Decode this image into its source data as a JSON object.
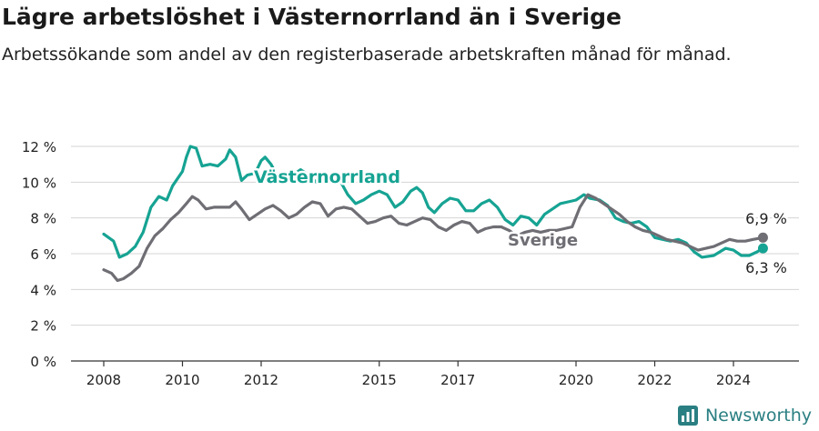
{
  "header": {
    "title": "Lägre arbetslöshet i Västernorrland än i Sverige",
    "subtitle": "Arbetssökande som andel av den registerbaserade arbetskraften månad för månad."
  },
  "brand": {
    "name": "Newsworthy",
    "icon": "newsworthy-logo-icon"
  },
  "colors": {
    "vasternorrland": "#16a393",
    "sverige": "#6e6e74",
    "grid": "#d4d4d4",
    "axis": "#333333"
  },
  "chart_data": {
    "type": "line",
    "title": "Lägre arbetslöshet i Västernorrland än i Sverige",
    "subtitle": "Arbetssökande som andel av den registerbaserade arbetskraften månad för månad.",
    "xlabel": "",
    "ylabel": "",
    "xlim": [
      2008,
      2025
    ],
    "ylim": [
      0,
      12
    ],
    "y_ticks": [
      0,
      2,
      4,
      6,
      8,
      10,
      12
    ],
    "y_tick_labels": [
      "0 %",
      "2 %",
      "4 %",
      "6 %",
      "8 %",
      "10 %",
      "12 %"
    ],
    "x_ticks": [
      2008,
      2010,
      2012,
      2015,
      2017,
      2020,
      2022,
      2024
    ],
    "x_tick_labels": [
      "2008",
      "2010",
      "2012",
      "2015",
      "2017",
      "2020",
      "2022",
      "2024"
    ],
    "grid": "horizontal",
    "legend": "direct labels on lines",
    "series": [
      {
        "name": "Västernorrland",
        "color": "#16a393",
        "end_label": "6,3 %",
        "points": [
          [
            2008.0,
            7.1
          ],
          [
            2008.25,
            6.7
          ],
          [
            2008.4,
            5.8
          ],
          [
            2008.6,
            6.0
          ],
          [
            2008.8,
            6.4
          ],
          [
            2009.0,
            7.2
          ],
          [
            2009.2,
            8.6
          ],
          [
            2009.4,
            9.2
          ],
          [
            2009.6,
            9.0
          ],
          [
            2009.75,
            9.8
          ],
          [
            2010.0,
            10.6
          ],
          [
            2010.1,
            11.4
          ],
          [
            2010.2,
            12.0
          ],
          [
            2010.35,
            11.9
          ],
          [
            2010.5,
            10.9
          ],
          [
            2010.7,
            11.0
          ],
          [
            2010.9,
            10.9
          ],
          [
            2011.1,
            11.3
          ],
          [
            2011.2,
            11.8
          ],
          [
            2011.35,
            11.4
          ],
          [
            2011.5,
            10.1
          ],
          [
            2011.65,
            10.4
          ],
          [
            2011.85,
            10.5
          ],
          [
            2012.0,
            11.2
          ],
          [
            2012.1,
            11.4
          ],
          [
            2012.25,
            11.0
          ],
          [
            2012.4,
            10.4
          ],
          [
            2012.55,
            10.0
          ],
          [
            2012.75,
            10.3
          ],
          [
            2013.0,
            10.7
          ],
          [
            2013.2,
            10.4
          ],
          [
            2013.4,
            10.0
          ],
          [
            2013.6,
            10.3
          ],
          [
            2013.8,
            10.4
          ],
          [
            2014.0,
            10.1
          ],
          [
            2014.2,
            9.3
          ],
          [
            2014.4,
            8.8
          ],
          [
            2014.6,
            9.0
          ],
          [
            2014.8,
            9.3
          ],
          [
            2015.0,
            9.5
          ],
          [
            2015.2,
            9.3
          ],
          [
            2015.4,
            8.6
          ],
          [
            2015.6,
            8.9
          ],
          [
            2015.8,
            9.5
          ],
          [
            2015.95,
            9.7
          ],
          [
            2016.1,
            9.4
          ],
          [
            2016.25,
            8.6
          ],
          [
            2016.4,
            8.3
          ],
          [
            2016.6,
            8.8
          ],
          [
            2016.8,
            9.1
          ],
          [
            2017.0,
            9.0
          ],
          [
            2017.2,
            8.4
          ],
          [
            2017.4,
            8.4
          ],
          [
            2017.6,
            8.8
          ],
          [
            2017.8,
            9.0
          ],
          [
            2018.0,
            8.6
          ],
          [
            2018.2,
            7.9
          ],
          [
            2018.4,
            7.6
          ],
          [
            2018.6,
            8.1
          ],
          [
            2018.8,
            8.0
          ],
          [
            2019.0,
            7.6
          ],
          [
            2019.2,
            8.2
          ],
          [
            2019.4,
            8.5
          ],
          [
            2019.6,
            8.8
          ],
          [
            2019.8,
            8.9
          ],
          [
            2020.0,
            9.0
          ],
          [
            2020.2,
            9.3
          ],
          [
            2020.35,
            9.1
          ],
          [
            2020.6,
            9.0
          ],
          [
            2020.8,
            8.7
          ],
          [
            2021.0,
            8.0
          ],
          [
            2021.2,
            7.8
          ],
          [
            2021.4,
            7.7
          ],
          [
            2021.6,
            7.8
          ],
          [
            2021.8,
            7.5
          ],
          [
            2022.0,
            6.9
          ],
          [
            2022.2,
            6.8
          ],
          [
            2022.4,
            6.7
          ],
          [
            2022.6,
            6.8
          ],
          [
            2022.8,
            6.6
          ],
          [
            2023.0,
            6.1
          ],
          [
            2023.2,
            5.8
          ],
          [
            2023.5,
            5.9
          ],
          [
            2023.8,
            6.3
          ],
          [
            2024.0,
            6.2
          ],
          [
            2024.2,
            5.9
          ],
          [
            2024.4,
            5.9
          ],
          [
            2024.6,
            6.1
          ],
          [
            2024.75,
            6.3
          ]
        ]
      },
      {
        "name": "Sverige",
        "color": "#6e6e74",
        "end_label": "6,9 %",
        "points": [
          [
            2008.0,
            5.1
          ],
          [
            2008.2,
            4.9
          ],
          [
            2008.35,
            4.5
          ],
          [
            2008.5,
            4.6
          ],
          [
            2008.7,
            4.9
          ],
          [
            2008.9,
            5.3
          ],
          [
            2009.1,
            6.3
          ],
          [
            2009.3,
            7.0
          ],
          [
            2009.5,
            7.4
          ],
          [
            2009.7,
            7.9
          ],
          [
            2009.9,
            8.3
          ],
          [
            2010.1,
            8.8
          ],
          [
            2010.25,
            9.2
          ],
          [
            2010.4,
            9.0
          ],
          [
            2010.6,
            8.5
          ],
          [
            2010.8,
            8.6
          ],
          [
            2011.0,
            8.6
          ],
          [
            2011.2,
            8.6
          ],
          [
            2011.35,
            8.9
          ],
          [
            2011.5,
            8.5
          ],
          [
            2011.7,
            7.9
          ],
          [
            2011.9,
            8.2
          ],
          [
            2012.1,
            8.5
          ],
          [
            2012.3,
            8.7
          ],
          [
            2012.5,
            8.4
          ],
          [
            2012.7,
            8.0
          ],
          [
            2012.9,
            8.2
          ],
          [
            2013.1,
            8.6
          ],
          [
            2013.3,
            8.9
          ],
          [
            2013.5,
            8.8
          ],
          [
            2013.7,
            8.1
          ],
          [
            2013.9,
            8.5
          ],
          [
            2014.1,
            8.6
          ],
          [
            2014.3,
            8.5
          ],
          [
            2014.5,
            8.1
          ],
          [
            2014.7,
            7.7
          ],
          [
            2014.9,
            7.8
          ],
          [
            2015.1,
            8.0
          ],
          [
            2015.3,
            8.1
          ],
          [
            2015.5,
            7.7
          ],
          [
            2015.7,
            7.6
          ],
          [
            2015.9,
            7.8
          ],
          [
            2016.1,
            8.0
          ],
          [
            2016.3,
            7.9
          ],
          [
            2016.5,
            7.5
          ],
          [
            2016.7,
            7.3
          ],
          [
            2016.9,
            7.6
          ],
          [
            2017.1,
            7.8
          ],
          [
            2017.3,
            7.7
          ],
          [
            2017.5,
            7.2
          ],
          [
            2017.7,
            7.4
          ],
          [
            2017.9,
            7.5
          ],
          [
            2018.1,
            7.5
          ],
          [
            2018.3,
            7.3
          ],
          [
            2018.5,
            7.0
          ],
          [
            2018.7,
            7.2
          ],
          [
            2018.9,
            7.3
          ],
          [
            2019.1,
            7.2
          ],
          [
            2019.3,
            7.3
          ],
          [
            2019.5,
            7.3
          ],
          [
            2019.7,
            7.4
          ],
          [
            2019.9,
            7.5
          ],
          [
            2020.1,
            8.6
          ],
          [
            2020.3,
            9.3
          ],
          [
            2020.5,
            9.1
          ],
          [
            2020.7,
            8.8
          ],
          [
            2020.9,
            8.5
          ],
          [
            2021.1,
            8.2
          ],
          [
            2021.3,
            7.8
          ],
          [
            2021.5,
            7.5
          ],
          [
            2021.7,
            7.3
          ],
          [
            2021.9,
            7.2
          ],
          [
            2022.1,
            7.0
          ],
          [
            2022.3,
            6.8
          ],
          [
            2022.5,
            6.7
          ],
          [
            2022.7,
            6.6
          ],
          [
            2022.9,
            6.4
          ],
          [
            2023.1,
            6.2
          ],
          [
            2023.3,
            6.3
          ],
          [
            2023.5,
            6.4
          ],
          [
            2023.7,
            6.6
          ],
          [
            2023.9,
            6.8
          ],
          [
            2024.1,
            6.7
          ],
          [
            2024.3,
            6.7
          ],
          [
            2024.5,
            6.8
          ],
          [
            2024.75,
            6.9
          ]
        ]
      }
    ],
    "annotations": [
      {
        "text": "Västernorrland",
        "series": "Västernorrland"
      },
      {
        "text": "Sverige",
        "series": "Sverige"
      },
      {
        "text": "6,9 %",
        "series": "Sverige"
      },
      {
        "text": "6,3 %",
        "series": "Västernorrland"
      }
    ]
  }
}
